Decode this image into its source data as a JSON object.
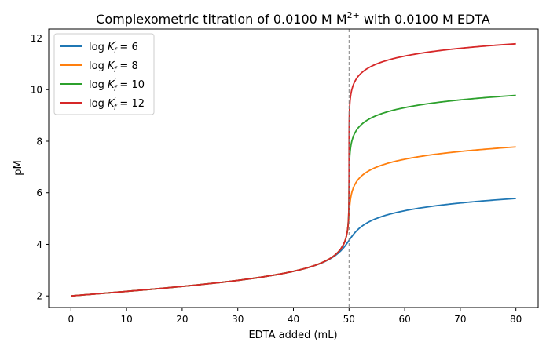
{
  "chart_data": {
    "type": "line",
    "title": {
      "prefix": "Complexometric titration of 0.0100 M M",
      "superscript": "2+",
      "suffix": " with 0.0100 M EDTA"
    },
    "xlabel": "EDTA added (mL)",
    "ylabel": "pM",
    "xlim": [
      -4,
      84
    ],
    "ylim": [
      1.55,
      12.35
    ],
    "x_ticks": [
      0,
      10,
      20,
      30,
      40,
      50,
      60,
      70,
      80
    ],
    "y_ticks": [
      2,
      4,
      6,
      8,
      10,
      12
    ],
    "grid": false,
    "legend_position": "top-left",
    "equivalence_line": {
      "x": 50,
      "style": "dashed",
      "color": "#808080"
    },
    "model": {
      "C_metal_M": 0.01,
      "V_metal_mL": 50,
      "C_EDTA_M": 0.01,
      "x_range": [
        0,
        80
      ]
    },
    "series": [
      {
        "log_kf": 6,
        "legend_prefix": "log ",
        "legend_suffix": " = 6",
        "color": "#1f77b4"
      },
      {
        "log_kf": 8,
        "legend_prefix": "log ",
        "legend_suffix": " = 8",
        "color": "#ff7f0e"
      },
      {
        "log_kf": 10,
        "legend_prefix": "log ",
        "legend_suffix": " = 10",
        "color": "#2ca02c"
      },
      {
        "log_kf": 12,
        "legend_prefix": "log ",
        "legend_suffix": " = 12",
        "color": "#d62728"
      }
    ]
  }
}
